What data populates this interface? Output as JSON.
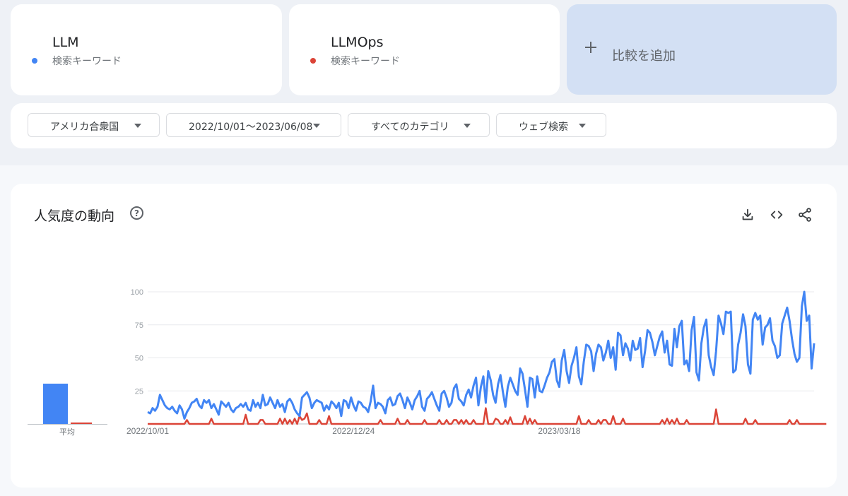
{
  "terms": [
    {
      "name": "LLM",
      "type": "検索キーワード",
      "color": "#4285f4"
    },
    {
      "name": "LLMOps",
      "type": "検索キーワード",
      "color": "#db4437"
    }
  ],
  "add_compare": {
    "label": "比較を追加",
    "icon": "plus-icon"
  },
  "filters": {
    "region": "アメリカ合衆国",
    "date_range": "2022/10/01～2023/06/08",
    "category": "すべてのカテゴリ",
    "search_type": "ウェブ検索"
  },
  "chart_section": {
    "title": "人気度の動向",
    "help_icon": "help-circle-icon",
    "actions": [
      "download-icon",
      "embed-code-icon",
      "share-icon"
    ],
    "average_label": "平均"
  },
  "chart_data": {
    "type": "line",
    "title": "",
    "xlabel": "",
    "ylabel": "",
    "ylim": [
      0,
      100
    ],
    "y_ticks": [
      100,
      75,
      50,
      25
    ],
    "x_tick_labels": [
      "2022/10/01",
      "2022/12/24",
      "2023/03/18"
    ],
    "x_tick_index": [
      0,
      84,
      168
    ],
    "grid": true,
    "legend": "none",
    "averages": [
      {
        "name": "LLM",
        "value": 31
      },
      {
        "name": "LLMOps",
        "value": 1
      }
    ],
    "series": [
      {
        "name": "LLM",
        "color": "#4285f4",
        "values": [
          9,
          8,
          12,
          10,
          13,
          22,
          18,
          14,
          12,
          11,
          13,
          10,
          8,
          14,
          11,
          4,
          9,
          12,
          16,
          17,
          19,
          14,
          12,
          18,
          16,
          18,
          12,
          15,
          11,
          7,
          17,
          15,
          13,
          16,
          11,
          9,
          12,
          13,
          15,
          13,
          16,
          11,
          10,
          18,
          13,
          16,
          12,
          22,
          14,
          15,
          20,
          16,
          12,
          18,
          13,
          15,
          9,
          17,
          19,
          16,
          11,
          8,
          6,
          20,
          22,
          24,
          20,
          12,
          16,
          18,
          17,
          16,
          10,
          14,
          11,
          17,
          15,
          12,
          16,
          6,
          18,
          17,
          12,
          20,
          14,
          10,
          17,
          16,
          13,
          12,
          9,
          17,
          29,
          12,
          16,
          15,
          13,
          8,
          18,
          20,
          14,
          15,
          21,
          23,
          18,
          12,
          20,
          16,
          11,
          18,
          21,
          25,
          13,
          10,
          19,
          21,
          24,
          19,
          14,
          10,
          23,
          25,
          20,
          13,
          16,
          27,
          30,
          19,
          17,
          14,
          22,
          26,
          20,
          29,
          35,
          14,
          28,
          36,
          16,
          40,
          33,
          22,
          16,
          30,
          37,
          24,
          13,
          28,
          35,
          30,
          25,
          22,
          42,
          38,
          26,
          13,
          35,
          34,
          20,
          36,
          25,
          24,
          29,
          35,
          39,
          47,
          49,
          33,
          28,
          48,
          56,
          40,
          31,
          44,
          50,
          58,
          36,
          30,
          47,
          60,
          59,
          55,
          40,
          53,
          60,
          58,
          48,
          54,
          63,
          50,
          58,
          41,
          69,
          67,
          52,
          61,
          57,
          48,
          63,
          56,
          57,
          65,
          43,
          55,
          71,
          69,
          62,
          52,
          59,
          66,
          70,
          54,
          63,
          45,
          44,
          72,
          58,
          74,
          78,
          45,
          48,
          40,
          71,
          81,
          39,
          33,
          61,
          73,
          79,
          52,
          43,
          37,
          55,
          82,
          76,
          68,
          85,
          84,
          85,
          39,
          41,
          60,
          69,
          83,
          74,
          45,
          38,
          79,
          84,
          79,
          82,
          60,
          73,
          75,
          80,
          63,
          59,
          50,
          52,
          76,
          82,
          88,
          78,
          64,
          53,
          47,
          50,
          89,
          100,
          78,
          82,
          42,
          61
        ]
      },
      {
        "name": "LLMOps",
        "color": "#db4437",
        "values": [
          0,
          0,
          0,
          0,
          0,
          0,
          0,
          0,
          0,
          0,
          0,
          0,
          0,
          0,
          0,
          0,
          0,
          0,
          0,
          0,
          0,
          0,
          0,
          0,
          0,
          0,
          0,
          0,
          0,
          0,
          0,
          0,
          0,
          0,
          0,
          0,
          0,
          0,
          0,
          0,
          0,
          0,
          0,
          0,
          0,
          0,
          0,
          0,
          0,
          0,
          0,
          0,
          0,
          0,
          0,
          0,
          0,
          0,
          0,
          0,
          0,
          0,
          0,
          0,
          0,
          0,
          0,
          0,
          0,
          0,
          0,
          0,
          0,
          0,
          0,
          0,
          0,
          0,
          0,
          0,
          0,
          0,
          0,
          0,
          0,
          0,
          0,
          0,
          0,
          0,
          0,
          0,
          0,
          0,
          0,
          0,
          0,
          0,
          0,
          0,
          0,
          0,
          0,
          0,
          0,
          0,
          0,
          0,
          0,
          0,
          0,
          0,
          0,
          0,
          0,
          0,
          0,
          0,
          0,
          0,
          0,
          0,
          0,
          0,
          0,
          0,
          0,
          0,
          0,
          0,
          0,
          0,
          0,
          0,
          0,
          0,
          0,
          0,
          0,
          0,
          0,
          0,
          0,
          0,
          0,
          0,
          0,
          0,
          0,
          0,
          0,
          0,
          0,
          0,
          0,
          0,
          0,
          0,
          0,
          0,
          0,
          0,
          0,
          0,
          0,
          0,
          0,
          0,
          0,
          0,
          0,
          0,
          0,
          0,
          0,
          0,
          0,
          0,
          0,
          0,
          0,
          0,
          0,
          0,
          0,
          0,
          0,
          0,
          0,
          0,
          0,
          0,
          0,
          0,
          0,
          0,
          0,
          0,
          0,
          0,
          0,
          0,
          0,
          0,
          0,
          0,
          0,
          0,
          0,
          0,
          0,
          0,
          0,
          0,
          0,
          0,
          0,
          0,
          0,
          0,
          0,
          0,
          0,
          0,
          0,
          0,
          0,
          0,
          0,
          0,
          0,
          0,
          0,
          0,
          0,
          0,
          0,
          0,
          0,
          0,
          0,
          0,
          0,
          0,
          0,
          0,
          0,
          0,
          0,
          0,
          0,
          0,
          0,
          0,
          0,
          0,
          0,
          0,
          0,
          0,
          0,
          0,
          0,
          0,
          0,
          0,
          0,
          0,
          0,
          0,
          0,
          0,
          0,
          0,
          0,
          0,
          0,
          0
        ],
        "spikes": {
          "16": 3,
          "26": 4,
          "40": 7,
          "46": 3,
          "47": 3,
          "54": 4,
          "56": 4,
          "58": 3,
          "60": 4,
          "62": 6,
          "63": 3,
          "64": 4,
          "65": 8,
          "70": 3,
          "74": 6,
          "95": 3,
          "102": 4,
          "106": 3,
          "113": 3,
          "119": 3,
          "122": 3,
          "125": 3,
          "126": 3,
          "128": 3,
          "130": 3,
          "133": 3,
          "138": 12,
          "142": 4,
          "143": 3,
          "146": 3,
          "148": 5,
          "154": 6,
          "156": 4,
          "158": 3,
          "176": 6,
          "180": 3,
          "184": 3,
          "186": 3,
          "187": 3,
          "190": 6,
          "194": 4,
          "210": 3,
          "212": 4,
          "214": 3,
          "216": 4,
          "220": 3,
          "232": 11,
          "244": 4,
          "248": 3,
          "262": 3,
          "265": 3
        }
      }
    ]
  }
}
